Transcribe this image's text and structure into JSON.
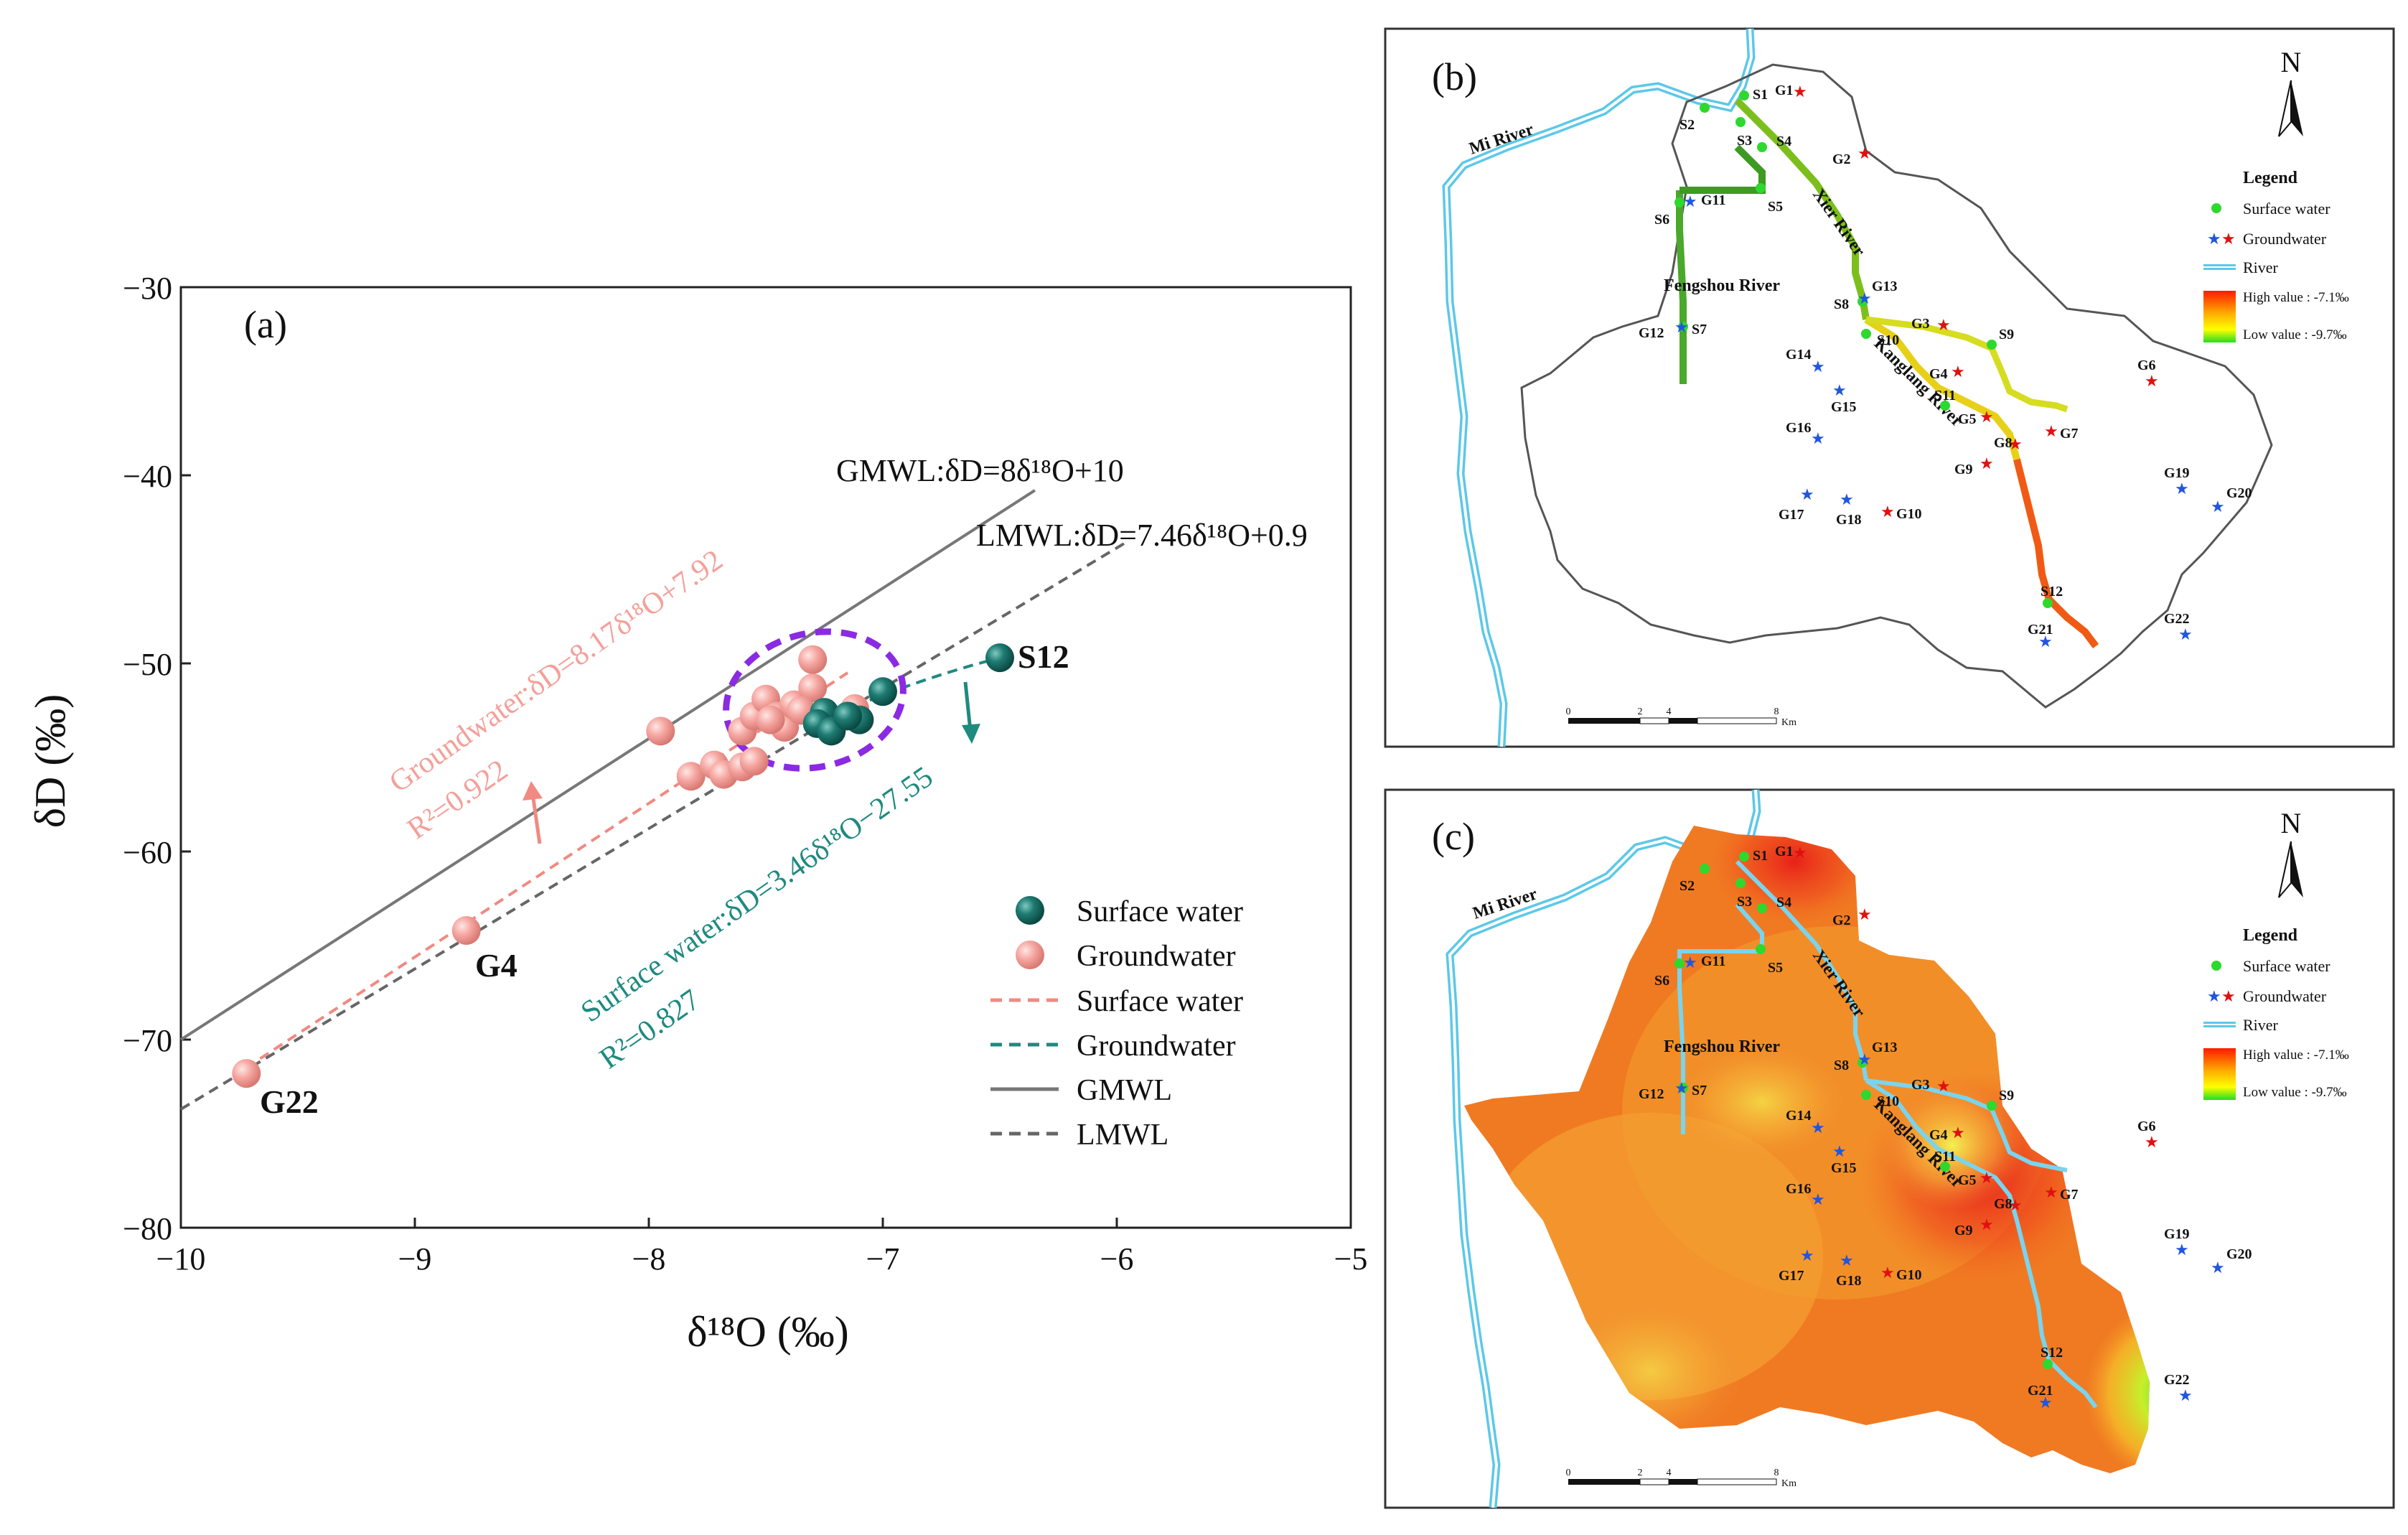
{
  "panels": {
    "a": "(a)",
    "b": "(b)",
    "c": "(c)"
  },
  "chart_data": {
    "type": "scatter",
    "xlabel": "δ¹⁸O (‰)",
    "ylabel": "δD (‰)",
    "xlim": [
      -10,
      -5
    ],
    "ylim": [
      -80,
      -30
    ],
    "xticks": [
      "−10",
      "−9",
      "−8",
      "−7",
      "−6",
      "−5"
    ],
    "yticks": [
      "−30",
      "−40",
      "−50",
      "−60",
      "−70",
      "−80"
    ],
    "legend_position": "bottom-right",
    "legend": [
      "Surface water",
      "Groundwater",
      "Surface water",
      "Groundwater",
      "GMWL",
      "LMWL"
    ],
    "lines": {
      "gmwl_label": "GMWL:δD=8δ¹⁸O+10",
      "lmwl_label": "LMWL:δD=7.46δ¹⁸O+0.9",
      "gw_label": "Groundwater:δD=8.17δ¹⁸O+7.92",
      "gw_r2": "R²=0.922",
      "sw_label": "Surface water:δD=3.46δ¹⁸O−27.55",
      "sw_r2": "R²=0.827"
    },
    "point_labels": {
      "g22": "G22",
      "g4": "G4",
      "s12": "S12"
    },
    "series": [
      {
        "name": "Surface water",
        "color": "#1e7b72",
        "points": [
          [
            -6.5,
            -49.7
          ],
          [
            -7.0,
            -51.5
          ],
          [
            -7.1,
            -53.0
          ],
          [
            -7.25,
            -52.6
          ],
          [
            -7.28,
            -53.2
          ],
          [
            -7.22,
            -53.6
          ],
          [
            -7.15,
            -52.8
          ]
        ]
      },
      {
        "name": "Groundwater",
        "color": "#f5a5a0",
        "points": [
          [
            -9.72,
            -71.8
          ],
          [
            -8.78,
            -64.2
          ],
          [
            -7.95,
            -53.6
          ],
          [
            -7.82,
            -56.0
          ],
          [
            -7.72,
            -55.4
          ],
          [
            -7.68,
            -55.9
          ],
          [
            -7.6,
            -55.5
          ],
          [
            -7.55,
            -55.2
          ],
          [
            -7.6,
            -53.6
          ],
          [
            -7.55,
            -52.8
          ],
          [
            -7.5,
            -51.9
          ],
          [
            -7.45,
            -52.8
          ],
          [
            -7.42,
            -53.4
          ],
          [
            -7.38,
            -52.2
          ],
          [
            -7.3,
            -49.8
          ],
          [
            -7.3,
            -51.3
          ],
          [
            -7.35,
            -52.5
          ],
          [
            -7.12,
            -52.4
          ],
          [
            -7.48,
            -53.0
          ]
        ]
      }
    ]
  },
  "map_b": {
    "north": "N",
    "legend_title": "Legend",
    "legend_items": [
      "Surface water",
      "Groundwater",
      "River"
    ],
    "high_value": "High value : -7.1‰",
    "low_value": "Low value : -9.7‰",
    "rivers": [
      "Mi River",
      "Xier River",
      "Fengshou River",
      "Kanglang River"
    ],
    "scale_labels": [
      "0",
      "2",
      "4",
      "8"
    ],
    "scale_unit": "Km",
    "surface_sites": [
      "S1",
      "S2",
      "S3",
      "S4",
      "S5",
      "S6",
      "S7",
      "S8",
      "S9",
      "S10",
      "S11",
      "S12"
    ],
    "groundwater_sites": [
      "G1",
      "G2",
      "G3",
      "G4",
      "G5",
      "G6",
      "G7",
      "G8",
      "G9",
      "G10",
      "G11",
      "G12",
      "G13",
      "G14",
      "G15",
      "G16",
      "G17",
      "G18",
      "G19",
      "G20",
      "G21",
      "G22"
    ]
  },
  "map_c": {
    "north": "N",
    "legend_title": "Legend",
    "legend_items": [
      "Surface water",
      "Groundwater",
      "River"
    ],
    "high_value": "High value : -7.1‰",
    "low_value": "Low value : -9.7‰",
    "rivers": [
      "Mi River",
      "Xier River",
      "Fengshou River",
      "Kanglang River"
    ],
    "scale_labels": [
      "0",
      "2",
      "4",
      "8"
    ],
    "scale_unit": "Km"
  },
  "colors": {
    "surface": "#1e7b72",
    "ground": "#f5a5a0",
    "gmwl": "#777777",
    "lmwl": "#666666",
    "gw_fit": "#f08a82",
    "sw_fit": "#1e8a80",
    "ellipse": "#8a2be2",
    "river": "#5cc8e8"
  }
}
